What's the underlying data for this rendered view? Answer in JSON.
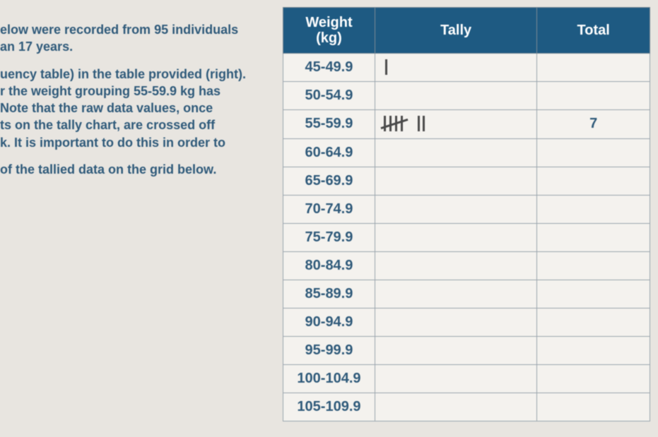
{
  "left_text": {
    "p1a": "elow were recorded from 95 individuals",
    "p1b": "an 17 years.",
    "p2a": "uency table) in the table provided (right).",
    "p2b": "r the weight grouping 55-59.9 kg has",
    "p2c_pre": "Note that the ",
    "p2c_bold": "raw data",
    "p2c_post": " values, once",
    "p2d": "ts on the tally chart, are crossed off",
    "p2e": "k. It is important to do this in order to",
    "p3": "of the tallied data on the grid below."
  },
  "table": {
    "header": {
      "weight_line1": "Weight",
      "weight_line2": "(kg)",
      "tally": "Tally",
      "total": "Total"
    },
    "rows": [
      {
        "range": "45-49.9",
        "tally_type": "one",
        "total": ""
      },
      {
        "range": "50-54.9",
        "tally_type": "",
        "total": ""
      },
      {
        "range": "55-59.9",
        "tally_type": "seven",
        "total": "7"
      },
      {
        "range": "60-64.9",
        "tally_type": "",
        "total": ""
      },
      {
        "range": "65-69.9",
        "tally_type": "",
        "total": ""
      },
      {
        "range": "70-74.9",
        "tally_type": "",
        "total": ""
      },
      {
        "range": "75-79.9",
        "tally_type": "",
        "total": ""
      },
      {
        "range": "80-84.9",
        "tally_type": "",
        "total": ""
      },
      {
        "range": "85-89.9",
        "tally_type": "",
        "total": ""
      },
      {
        "range": "90-94.9",
        "tally_type": "",
        "total": ""
      },
      {
        "range": "95-99.9",
        "tally_type": "",
        "total": ""
      },
      {
        "range": "100-104.9",
        "tally_type": "",
        "total": ""
      },
      {
        "range": "105-109.9",
        "tally_type": "",
        "total": ""
      }
    ],
    "colors": {
      "header_bg": "#1e5a82",
      "header_fg": "#ffffff",
      "border": "#9aa5ad",
      "cell_bg": "#f4f2ee",
      "text": "#2f5a7a"
    }
  }
}
